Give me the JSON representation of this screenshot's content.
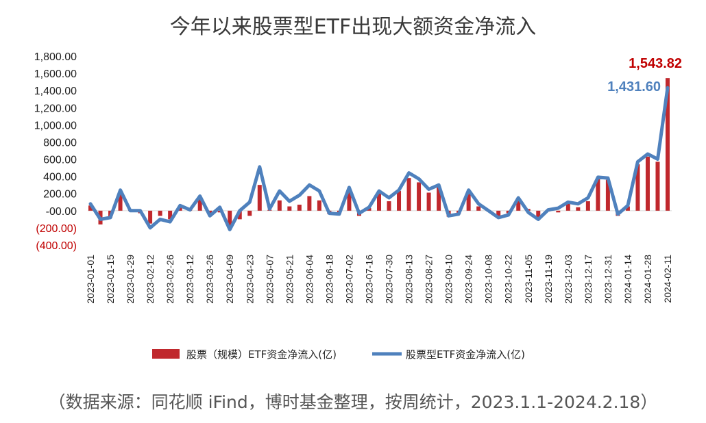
{
  "chart_data": {
    "type": "bar+line",
    "title": "今年以来股票型ETF出现大额资金净流入",
    "source": "（数据来源：同花顺 iFind，博时基金整理，按周统计，2023.1.1-2024.2.18）",
    "y_ticks": [
      "1,800.00",
      "1,600.00",
      "1,400.00",
      "1,200.00",
      "1,000.00",
      "800.00",
      "600.00",
      "400.00",
      "200.00",
      "-00.00",
      "(200.00)",
      "(400.00)"
    ],
    "ylim": [
      -400,
      1800
    ],
    "x_ticks": [
      "2023-01-01",
      "2023-01-15",
      "2023-01-29",
      "2023-02-12",
      "2023-02-26",
      "2023-03-12",
      "2023-03-26",
      "2023-04-09",
      "2023-04-23",
      "2023-05-07",
      "2023-05-21",
      "2023-06-04",
      "2023-06-18",
      "2023-07-02",
      "2023-07-16",
      "2023-07-30",
      "2023-08-13",
      "2023-08-27",
      "2023-09-10",
      "2023-09-24",
      "2023-10-08",
      "2023-10-22",
      "2023-11-05",
      "2023-11-19",
      "2023-12-03",
      "2023-12-17",
      "2023-12-31",
      "2024-01-14",
      "2024-01-28",
      "2024-02-11"
    ],
    "series": [
      {
        "name": "股票（规模）ETF资金净流入(亿)",
        "type": "bar",
        "color": "#c0282d",
        "values": [
          60,
          -160,
          -80,
          200,
          5,
          -30,
          -150,
          -60,
          -100,
          40,
          15,
          140,
          -60,
          -20,
          -200,
          -100,
          -60,
          300,
          10,
          120,
          50,
          70,
          170,
          120,
          -40,
          -40,
          220,
          -60,
          30,
          200,
          110,
          230,
          380,
          330,
          210,
          280,
          -70,
          -40,
          210,
          50,
          -10,
          -70,
          -30,
          120,
          20,
          -80,
          -10,
          -20,
          80,
          40,
          110,
          370,
          360,
          -60,
          50,
          540,
          630,
          570,
          1543.82
        ]
      },
      {
        "name": "股票型ETF资金净流入(亿)",
        "type": "line",
        "color": "#4f81bd",
        "values": [
          80,
          -100,
          -80,
          240,
          0,
          0,
          -200,
          -100,
          -130,
          60,
          10,
          170,
          -60,
          40,
          -220,
          0,
          100,
          510,
          20,
          230,
          110,
          180,
          300,
          230,
          -30,
          -40,
          270,
          -30,
          40,
          230,
          150,
          240,
          440,
          370,
          250,
          300,
          -60,
          -40,
          240,
          80,
          0,
          -80,
          -50,
          150,
          -20,
          -100,
          10,
          30,
          100,
          80,
          150,
          390,
          380,
          -40,
          60,
          570,
          660,
          600,
          1431.6
        ]
      }
    ],
    "annotations": [
      "1,543.82",
      "1,431.60"
    ],
    "legend": "bottom"
  }
}
